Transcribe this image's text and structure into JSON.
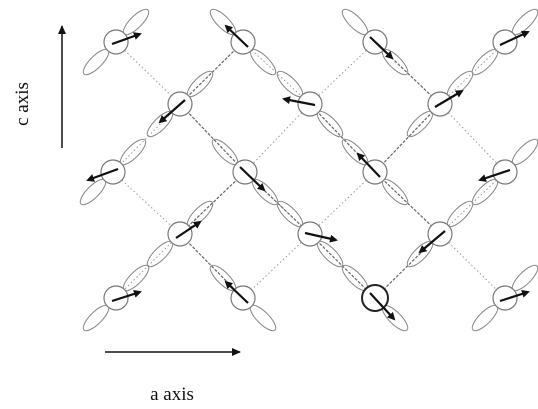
{
  "labels": {
    "c_axis": "c axis",
    "a_axis": "a axis"
  }
}
